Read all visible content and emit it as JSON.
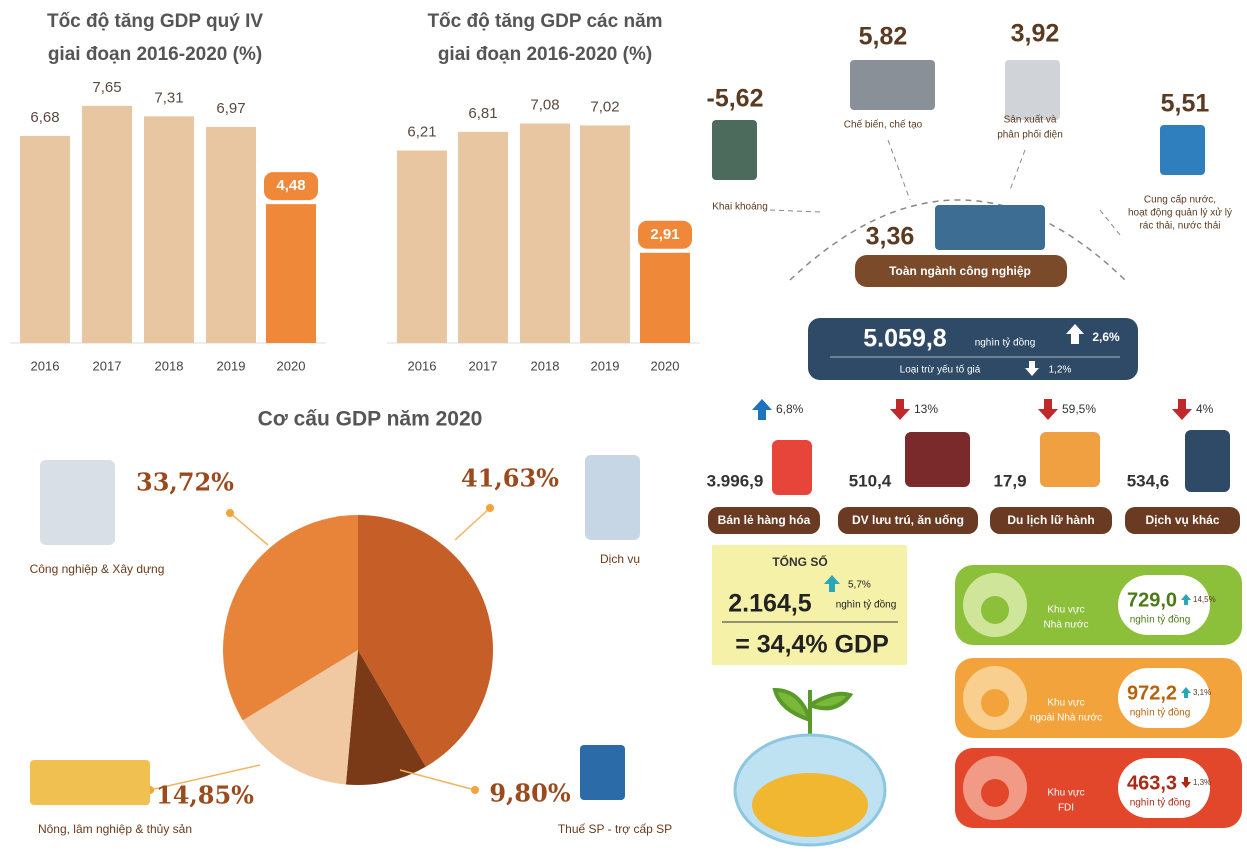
{
  "chart_data": [
    {
      "type": "bar",
      "title": [
        "Tốc độ tăng GDP quý IV",
        "giai đoạn 2016-2020 (%)"
      ],
      "categories": [
        "2016",
        "2017",
        "2018",
        "2019",
        "2020"
      ],
      "values": [
        6.68,
        7.65,
        7.31,
        6.97,
        4.48
      ],
      "value_labels": [
        "6,68",
        "7,65",
        "7,31",
        "6,97",
        "4,48"
      ],
      "colors": [
        "#e9c6a2",
        "#e9c6a2",
        "#e9c6a2",
        "#e9c6a2",
        "#f0883a"
      ]
    },
    {
      "type": "bar",
      "title": [
        "Tốc độ tăng GDP các năm",
        "giai đoạn 2016-2020 (%)"
      ],
      "categories": [
        "2016",
        "2017",
        "2018",
        "2019",
        "2020"
      ],
      "values": [
        6.21,
        6.81,
        7.08,
        7.02,
        2.91
      ],
      "value_labels": [
        "6,21",
        "6,81",
        "7,08",
        "7,02",
        "2,91"
      ],
      "colors": [
        "#e9c6a2",
        "#e9c6a2",
        "#e9c6a2",
        "#e9c6a2",
        "#f0883a"
      ]
    },
    {
      "type": "pie",
      "title": "Cơ cấu GDP năm 2020",
      "categories": [
        "Dịch vụ",
        "Thuế SP - trợ cấp SP",
        "Nông, lâm nghiệp & thủy sản",
        "Công nghiệp & Xây dựng"
      ],
      "values": [
        41.63,
        9.8,
        14.85,
        33.72
      ],
      "value_labels": [
        "41,63%",
        "9,80%",
        "14,85%",
        "33,72%"
      ],
      "colors": [
        "#c65e28",
        "#7a3a18",
        "#f0c9a3",
        "#e8843a"
      ]
    }
  ],
  "industry": {
    "items": [
      {
        "value": "-5,62",
        "label": [
          "Khai khoáng"
        ]
      },
      {
        "value": "5,82",
        "label": [
          "Chế biến, chế tạo"
        ]
      },
      {
        "value": "3,92",
        "label": [
          "Sản xuất và",
          "phân phối điện"
        ]
      },
      {
        "value": "5,51",
        "label": [
          "Cung cấp nước,",
          "hoạt động quản lý xử lý",
          "rác thải, nước thải"
        ]
      }
    ],
    "total": {
      "value": "3,36",
      "label": "Toàn ngành công nghiệp"
    }
  },
  "retail": {
    "total": "5.059,8",
    "unit": "nghìn tỷ đồng",
    "growth": "2,6%",
    "note": "Loại trừ yếu tố giá",
    "real_growth": "1,2%",
    "items": [
      {
        "change": "6,8%",
        "value": "3.996,9",
        "label": "Bán lẻ hàng hóa"
      },
      {
        "change": "13%",
        "value": "510,4",
        "label": "DV lưu trú, ăn uống"
      },
      {
        "change": "59,5%",
        "value": "17,9",
        "label": "Du lịch lữ hành"
      },
      {
        "change": "4%",
        "value": "534,6",
        "label": "Dịch vụ khác"
      }
    ]
  },
  "investment": {
    "heading": "TỔNG SỐ",
    "total": "2.164,5",
    "growth": "5,7%",
    "unit": "nghìn tỷ đồng",
    "share": "= 34,4% GDP",
    "sectors": [
      {
        "label": [
          "Khu vực",
          "Nhà nước"
        ],
        "value": "729,0",
        "change": "14,5%",
        "unit": "nghìn tỷ đồng"
      },
      {
        "label": [
          "Khu vực",
          "ngoài Nhà nước"
        ],
        "value": "972,2",
        "change": "3,1%",
        "unit": "nghìn tỷ đồng"
      },
      {
        "label": [
          "Khu vực",
          "FDI"
        ],
        "value": "463,3",
        "change": "1,3%",
        "unit": "nghìn tỷ đồng"
      }
    ]
  }
}
